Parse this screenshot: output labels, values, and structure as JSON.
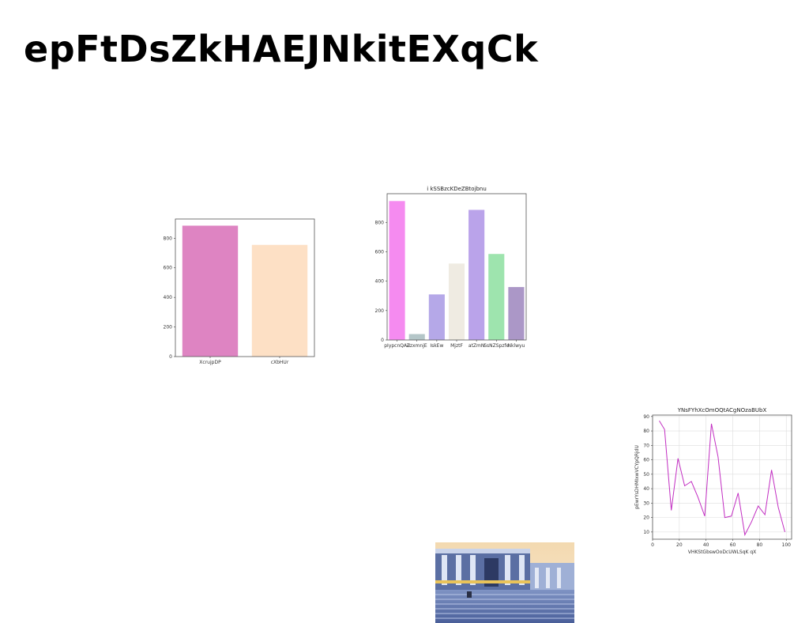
{
  "page": {
    "title": "epFtDsZkHAEJNkitEXqCk"
  },
  "chart_data": [
    {
      "type": "bar",
      "title": "",
      "xlabel": "",
      "ylabel": "",
      "categories": [
        "XcrujpDP",
        "cXbHUr"
      ],
      "values": [
        885,
        755
      ],
      "colors": [
        "#de84c2",
        "#fde0c5"
      ],
      "ylim": [
        0,
        930
      ],
      "yticks": [
        0,
        200,
        400,
        600,
        800
      ],
      "grid": false
    },
    {
      "type": "bar",
      "title": "i kSSBzcKDeZBtojbnu",
      "xlabel": "",
      "ylabel": "",
      "categories": [
        "pIypcnQAu",
        "ZzxmnjE",
        "IskEw",
        "MjztF",
        "atZmN",
        "SsNZSpzfe",
        "Nklwyu"
      ],
      "values": [
        945,
        40,
        310,
        520,
        885,
        585,
        360
      ],
      "colors": [
        "#f58bf0",
        "#b4c6c8",
        "#b5a8e8",
        "#efebe2",
        "#baa3ea",
        "#9ee4ae",
        "#ab97c7"
      ],
      "ylim": [
        0,
        995
      ],
      "yticks": [
        0,
        200,
        400,
        600,
        800
      ],
      "grid": false
    },
    {
      "type": "line",
      "title": "YNsFYhXcOmOQtACgNOzaBUbX",
      "xlabel": "VHKStGbswOoDcUWLSqK qX",
      "ylabel": "pEwrYsDHMIxwVCYpQRjdU",
      "color": "#c22ec2",
      "x": [
        5,
        9,
        14,
        19,
        24,
        29,
        34,
        39,
        44,
        49,
        54,
        59,
        64,
        69,
        74,
        79,
        84,
        89,
        94,
        99
      ],
      "y": [
        87,
        81,
        25,
        61,
        42,
        45,
        34,
        21,
        85,
        62,
        20,
        21,
        37,
        8,
        17,
        28,
        22,
        53,
        27,
        10
      ],
      "xlim": [
        0,
        104
      ],
      "ylim": [
        5,
        91
      ],
      "xticks": [
        0,
        20,
        40,
        60,
        80,
        100
      ],
      "yticks": [
        10,
        20,
        30,
        40,
        50,
        60,
        70,
        80,
        90
      ],
      "grid": true
    }
  ]
}
